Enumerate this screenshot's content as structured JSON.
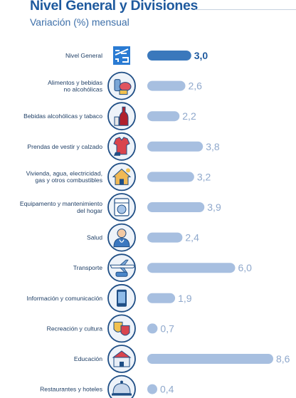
{
  "header": {
    "title": "Nivel General y Divisiones",
    "subtitle": "Variación (%) mensual"
  },
  "colors": {
    "highlight_bar": "#3a78bc",
    "bar": "#a7bfe0",
    "icon_ring": "#1f4e85",
    "icon_ring_fill": "#eef3f9",
    "logo": "#2a7bd3"
  },
  "chart_data": {
    "type": "bar",
    "orientation": "horizontal",
    "categories": [
      [
        "Nivel General"
      ],
      [
        "Alimentos y bebidas",
        "no alcohólicas"
      ],
      [
        "Bebidas alcohólicas y tabaco"
      ],
      [
        "Prendas de vestir y calzado"
      ],
      [
        "Vivienda, agua, electricidad,",
        "gas y otros combustibles"
      ],
      [
        "Equipamento y mantenimiento",
        "del hogar"
      ],
      [
        "Salud"
      ],
      [
        "Transporte"
      ],
      [
        "Información y comunicación"
      ],
      [
        "Recreación y cultura"
      ],
      [
        "Educación"
      ],
      [
        "Restaurantes y hoteles"
      ]
    ],
    "values": [
      3.0,
      2.6,
      2.2,
      3.8,
      3.2,
      3.9,
      2.4,
      6.0,
      1.9,
      0.7,
      8.6,
      0.4
    ],
    "value_labels": [
      "3,0",
      "2,6",
      "2,2",
      "3,8",
      "3,2",
      "3,9",
      "2,4",
      "6,0",
      "1,9",
      "0,7",
      "8,6",
      "0,4"
    ],
    "highlight_index": 0,
    "icons": [
      "indec-logo-icon",
      "food-icon",
      "wine-bottle-icon",
      "clothing-icon",
      "house-icon",
      "washing-machine-icon",
      "doctor-icon",
      "airplane-icon",
      "mobile-phone-icon",
      "theater-masks-icon",
      "school-building-icon",
      "restaurant-cloche-icon"
    ],
    "xlim": [
      0,
      8.6
    ]
  }
}
